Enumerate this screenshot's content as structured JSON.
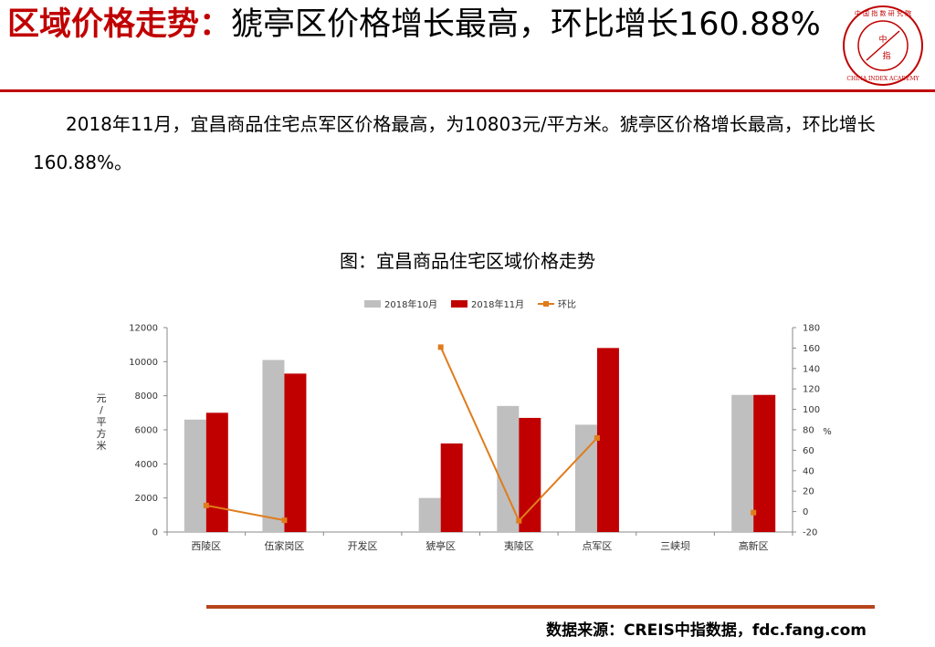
{
  "header": {
    "title_highlight": "区域价格走势：",
    "title_rest": "猇亭区价格增长最高，环比增长160.88%",
    "logo_text": "中 指",
    "logo_ring_text": "中国指数研究院 CHINA INDEX ACADEMY"
  },
  "body": {
    "paragraph": "2018年11月，宜昌商品住宅点军区价格最高，为10803元/平方米。猇亭区价格增长最高，环比增长160.88%。"
  },
  "chart_title": "图：宜昌商品住宅区域价格走势",
  "colors": {
    "accent": "#c00000",
    "oct_bar": "#bfbfbf",
    "nov_bar": "#c00000",
    "line": "#e07c1c"
  },
  "chart_data": {
    "type": "bar",
    "categories": [
      "西陵区",
      "伍家岗区",
      "开发区",
      "猇亭区",
      "夷陵区",
      "点军区",
      "三峡坝",
      "高新区"
    ],
    "series": [
      {
        "name": "2018年10月",
        "type": "bar",
        "axis": "left",
        "values": [
          6600,
          10100,
          null,
          2000,
          7400,
          6300,
          null,
          8050
        ]
      },
      {
        "name": "2018年11月",
        "type": "bar",
        "axis": "left",
        "values": [
          7000,
          9300,
          null,
          5200,
          6700,
          10803,
          null,
          8050
        ]
      },
      {
        "name": "环比",
        "type": "line",
        "axis": "right",
        "values": [
          6,
          -8.5,
          null,
          160.88,
          -9,
          72,
          null,
          -1
        ]
      }
    ],
    "ylabel": "元/平方米",
    "ylim": [
      0,
      12000
    ],
    "yticks": [
      "0",
      "2000",
      "4000",
      "6000",
      "8000",
      "10000",
      "12000"
    ],
    "y2label": "%",
    "y2lim": [
      -20,
      180
    ],
    "y2ticks": [
      "-20",
      "0",
      "20",
      "40",
      "60",
      "80",
      "100",
      "120",
      "140",
      "160",
      "180"
    ],
    "legend_position": "top",
    "grid": false
  },
  "footer": {
    "source": "数据来源：CREIS中指数据，fdc.fang.com"
  }
}
